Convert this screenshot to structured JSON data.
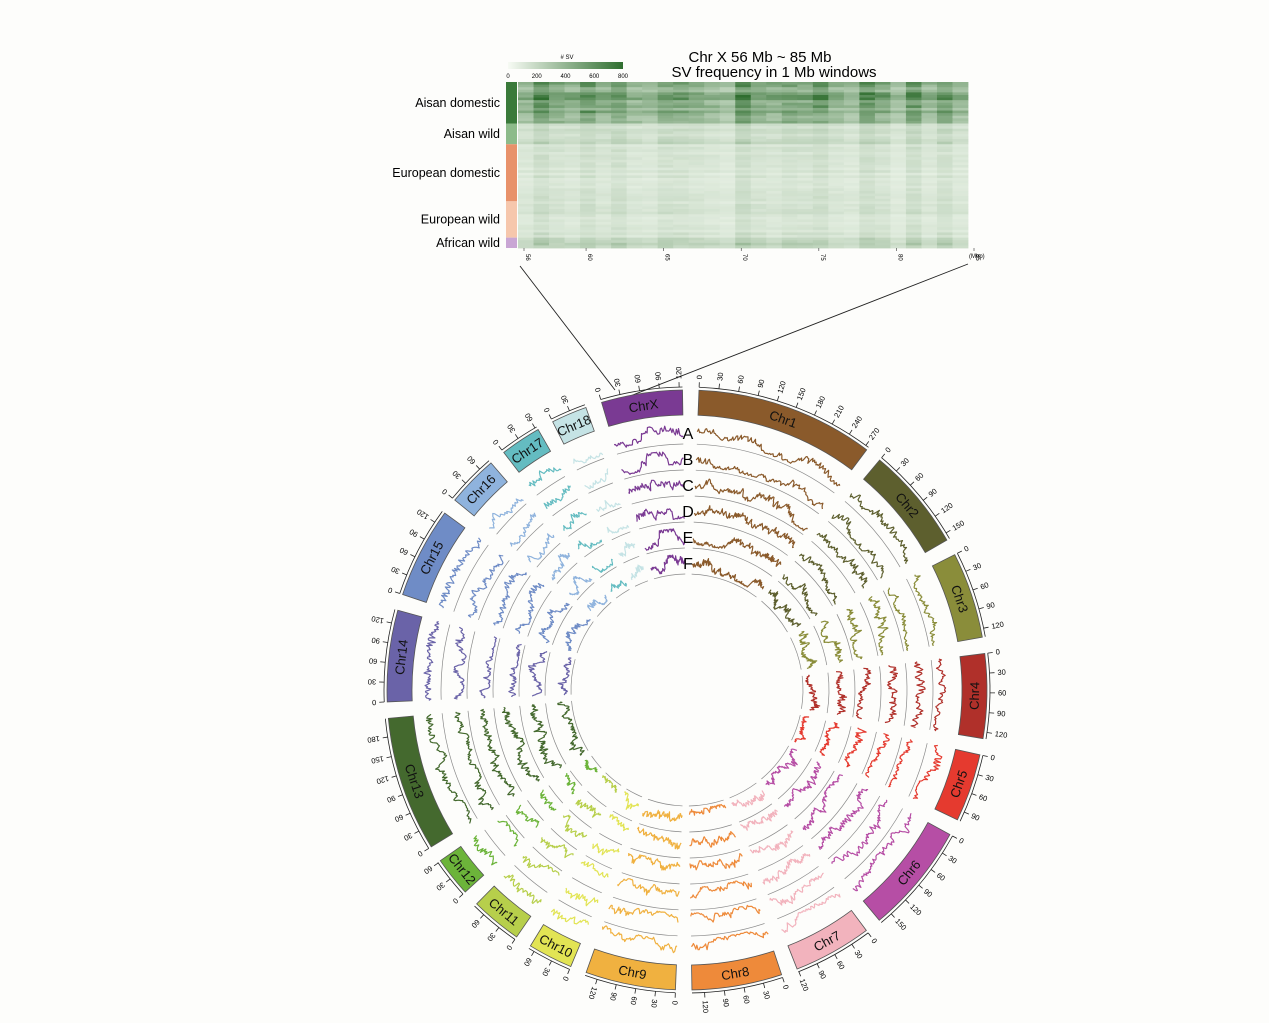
{
  "heatmap": {
    "title_line1": "Chr X 56 Mb ~ 85 Mb",
    "title_line2": "SV frequency in 1 Mb windows",
    "colorbar_label": "# SV",
    "colorbar_ticks": [
      "0",
      "200",
      "400",
      "600",
      "800"
    ],
    "colorbar_range": [
      0,
      800
    ],
    "x_ticks": [
      "56",
      "60",
      "65",
      "70",
      "75",
      "80",
      "85"
    ],
    "x_tick_values": [
      56,
      60,
      65,
      70,
      75,
      80,
      85
    ],
    "x_range": [
      56,
      85
    ],
    "x_unit": "(Mbp)",
    "groups": [
      {
        "label": "Aisan domestic",
        "color": "#3a7a3a",
        "rows": 16,
        "level": 0.62
      },
      {
        "label": "Aisan wild",
        "color": "#8dbb8a",
        "rows": 8,
        "level": 0.22
      },
      {
        "label": "European domestic",
        "color": "#e8926a",
        "rows": 22,
        "level": 0.14
      },
      {
        "label": "European wild",
        "color": "#f6c7ac",
        "rows": 14,
        "level": 0.15
      },
      {
        "label": "African wild",
        "color": "#c9a6d4",
        "rows": 4,
        "level": 0.24
      }
    ],
    "colors": {
      "low": "#f2f8ef",
      "high": "#2f6e2f"
    }
  },
  "circos": {
    "track_labels": [
      "A",
      "B",
      "C",
      "D",
      "E",
      "F"
    ],
    "chromosomes": [
      {
        "name": "Chr1",
        "length": 275,
        "ticks": [
          0,
          30,
          60,
          90,
          120,
          150,
          180,
          210,
          240,
          270
        ],
        "color": "#8a5a2b"
      },
      {
        "name": "Chr2",
        "length": 160,
        "ticks": [
          0,
          30,
          60,
          90,
          120,
          150
        ],
        "color": "#5d5f2e"
      },
      {
        "name": "Chr3",
        "length": 133,
        "ticks": [
          0,
          30,
          60,
          90,
          120
        ],
        "color": "#8a8d3a"
      },
      {
        "name": "Chr4",
        "length": 130,
        "ticks": [
          0,
          30,
          60,
          90,
          120
        ],
        "color": "#b0302a"
      },
      {
        "name": "Chr5",
        "length": 105,
        "ticks": [
          0,
          30,
          60,
          90
        ],
        "color": "#e53a2f"
      },
      {
        "name": "Chr6",
        "length": 170,
        "ticks": [
          0,
          30,
          60,
          90,
          120,
          150
        ],
        "color": "#b64ea5"
      },
      {
        "name": "Chr7",
        "length": 121,
        "ticks": [
          0,
          30,
          60,
          90,
          120
        ],
        "color": "#f2b3bd"
      },
      {
        "name": "Chr8",
        "length": 139,
        "ticks": [
          0,
          30,
          60,
          90,
          120
        ],
        "color": "#ee8a3a"
      },
      {
        "name": "Chr9",
        "length": 139,
        "ticks": [
          0,
          30,
          60,
          90,
          120
        ],
        "color": "#f0b140"
      },
      {
        "name": "Chr10",
        "length": 69,
        "ticks": [
          0,
          30,
          60
        ],
        "color": "#e2e454"
      },
      {
        "name": "Chr11",
        "length": 79,
        "ticks": [
          0,
          30,
          60
        ],
        "color": "#b7cf4b"
      },
      {
        "name": "Chr12",
        "length": 61,
        "ticks": [
          0,
          30,
          60
        ],
        "color": "#6cb43a"
      },
      {
        "name": "Chr13",
        "length": 208,
        "ticks": [
          0,
          30,
          60,
          90,
          120,
          150,
          180
        ],
        "color": "#44692e"
      },
      {
        "name": "Chr14",
        "length": 141,
        "ticks": [
          0,
          30,
          60,
          90,
          120
        ],
        "color": "#6a63a8"
      },
      {
        "name": "Chr15",
        "length": 140,
        "ticks": [
          0,
          30,
          60,
          90,
          120
        ],
        "color": "#6f8cc6"
      },
      {
        "name": "Chr16",
        "length": 79,
        "ticks": [
          0,
          30,
          60
        ],
        "color": "#8fb3dd"
      },
      {
        "name": "Chr17",
        "length": 63,
        "ticks": [
          0,
          30,
          60
        ],
        "color": "#64bcc1"
      },
      {
        "name": "Chr18",
        "length": 55,
        "ticks": [
          0,
          30
        ],
        "color": "#c5e3e5"
      },
      {
        "name": "ChrX",
        "length": 125,
        "ticks": [
          0,
          30,
          60,
          90,
          120
        ],
        "color": "#7a3a93"
      }
    ]
  }
}
